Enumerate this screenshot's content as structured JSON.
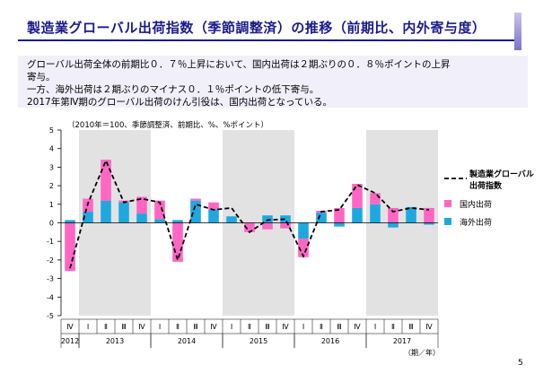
{
  "title": "製造業グローバル出荷指数（季節調整済）の推移（前期比、内外寄与度）",
  "summary": [
    "グローバル出荷全体の前期比０．７％上昇において、国内出荷は２期ぶりの０．８％ポイントの上昇",
    "寄与。",
    "一方、海外出荷は２期ぶりのマイナス０．１％ポイントの低下寄与。",
    "2017年第Ⅳ期のグローバル出荷のけん引役は、国内出荷となっている。"
  ],
  "page_number": "5",
  "colors": {
    "domestic": "#ff66c4",
    "overseas": "#1fa8e0",
    "line": "#000000",
    "shade": "#e2e2e2",
    "title": "#1a1a8c",
    "summary_bg": "#f1effa"
  },
  "chart_data": {
    "type": "bar",
    "note": "（2010年＝100、季節調整済、前期比、%、%ポイント）",
    "categories": [
      "Ⅳ",
      "Ⅰ",
      "Ⅱ",
      "Ⅲ",
      "Ⅳ",
      "Ⅰ",
      "Ⅱ",
      "Ⅲ",
      "Ⅳ",
      "Ⅰ",
      "Ⅱ",
      "Ⅲ",
      "Ⅳ",
      "Ⅰ",
      "Ⅱ",
      "Ⅲ",
      "Ⅳ",
      "Ⅰ",
      "Ⅱ",
      "Ⅲ",
      "Ⅳ"
    ],
    "year_labels": [
      {
        "label": "2012",
        "start": 0,
        "end": 0
      },
      {
        "label": "2013",
        "start": 1,
        "end": 4
      },
      {
        "label": "2014",
        "start": 5,
        "end": 8
      },
      {
        "label": "2015",
        "start": 9,
        "end": 12
      },
      {
        "label": "2016",
        "start": 13,
        "end": 16
      },
      {
        "label": "2017",
        "start": 17,
        "end": 20
      }
    ],
    "shaded_ranges": [
      [
        1,
        4
      ],
      [
        9,
        12
      ],
      [
        17,
        20
      ]
    ],
    "xlabel": "（期／年）",
    "ylim": [
      -5,
      5
    ],
    "yticks": [
      5,
      4,
      3,
      2,
      1,
      0,
      -1,
      -2,
      -3,
      -4,
      -5
    ],
    "series": [
      {
        "name": "国内出荷",
        "kind": "bar",
        "values": [
          -2.6,
          0.7,
          2.2,
          0.1,
          0.9,
          1.0,
          -2.1,
          0.1,
          0.4,
          0.0,
          -0.5,
          -0.35,
          -0.3,
          -1.0,
          0.1,
          0.8,
          1.3,
          0.6,
          0.8,
          0.0,
          0.8
        ]
      },
      {
        "name": "海外出荷",
        "kind": "bar",
        "values": [
          0.15,
          0.6,
          1.2,
          1.1,
          0.5,
          0.2,
          0.15,
          1.2,
          0.7,
          0.35,
          0.0,
          0.4,
          0.4,
          -0.85,
          0.55,
          -0.2,
          0.8,
          1.0,
          -0.25,
          0.85,
          -0.1
        ]
      },
      {
        "name": "製造業グローバル出荷指数",
        "kind": "line",
        "values": [
          -2.45,
          1.05,
          3.35,
          1.1,
          1.3,
          1.1,
          -2.0,
          1.0,
          0.7,
          0.8,
          -0.5,
          0.15,
          0.2,
          -1.8,
          0.6,
          0.7,
          2.05,
          1.6,
          0.6,
          0.8,
          0.7
        ]
      }
    ],
    "legend": {
      "position": "right",
      "line_label": [
        "製造業グローバル",
        "出荷指数"
      ],
      "domestic_label": "国内出荷",
      "overseas_label": "海外出荷"
    }
  }
}
